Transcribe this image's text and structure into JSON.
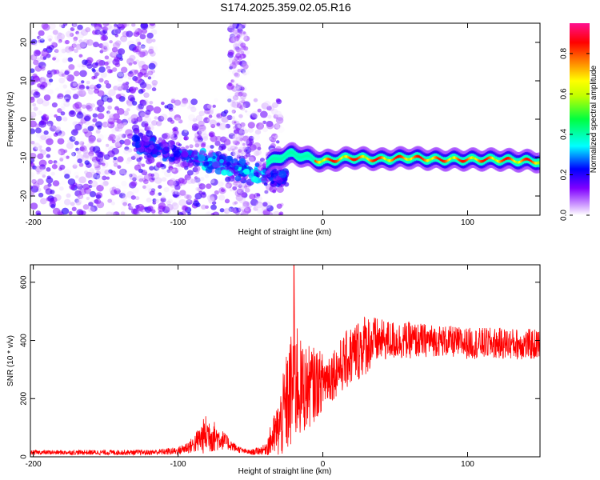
{
  "title": "S174.2025.359.02.05.R16",
  "chart_data": [
    {
      "type": "heatmap",
      "xlabel": "Height of straight line (km)",
      "ylabel": "Frequency (Hz)",
      "xlim": [
        -202,
        150
      ],
      "ylim": [
        -25,
        25
      ],
      "x_ticks": [
        -200,
        -100,
        0,
        100
      ],
      "y_ticks": [
        -20,
        -10,
        0,
        10,
        20
      ],
      "colorbar": {
        "label": "Normalized spectral amplitude",
        "range": [
          0.0,
          0.95
        ],
        "ticks": [
          0.0,
          0.2,
          0.4,
          0.6,
          0.8
        ],
        "colormap": [
          "#ffffff",
          "#a020f0",
          "#0000ff",
          "#00ffff",
          "#00ff00",
          "#ffff00",
          "#ff8000",
          "#ff0000",
          "#ff1493"
        ]
      },
      "ridge": {
        "description_values_x": [
          -40,
          -30,
          -20,
          -10,
          0,
          20,
          40,
          60,
          80,
          100,
          120,
          150
        ],
        "freq_values": [
          -12,
          -10,
          -9,
          -10,
          -11,
          -10,
          -10.5,
          -10,
          -10.5,
          -10.5,
          -10.5,
          -11
        ]
      },
      "scatter_region": {
        "x": [
          -202,
          -30
        ],
        "y": [
          -25,
          25
        ]
      }
    },
    {
      "type": "line",
      "xlabel": "Height of straight line (km)",
      "ylabel": "SNR (10 * v/v)",
      "xlim": [
        -202,
        150
      ],
      "ylim": [
        0,
        660
      ],
      "x_ticks": [
        -200,
        -100,
        0,
        100
      ],
      "y_ticks": [
        0,
        200,
        400,
        600
      ],
      "color": "#ff0000",
      "envelope": {
        "x": [
          -202,
          -150,
          -120,
          -100,
          -90,
          -80,
          -75,
          -70,
          -65,
          -60,
          -55,
          -50,
          -40,
          -30,
          -25,
          -20,
          -18,
          -15,
          -10,
          -5,
          0,
          10,
          20,
          30,
          40,
          60,
          80,
          100,
          120,
          150
        ],
        "mean": [
          15,
          15,
          15,
          20,
          40,
          80,
          70,
          60,
          45,
          30,
          20,
          15,
          25,
          100,
          180,
          250,
          270,
          230,
          240,
          250,
          260,
          300,
          350,
          390,
          400,
          400,
          400,
          390,
          390,
          385
        ],
        "amp": [
          8,
          10,
          10,
          15,
          30,
          80,
          60,
          40,
          25,
          15,
          10,
          10,
          20,
          120,
          200,
          250,
          250,
          180,
          160,
          140,
          110,
          100,
          120,
          120,
          80,
          70,
          60,
          60,
          60,
          60
        ]
      },
      "peak": {
        "x": -20,
        "y": 660
      }
    }
  ]
}
